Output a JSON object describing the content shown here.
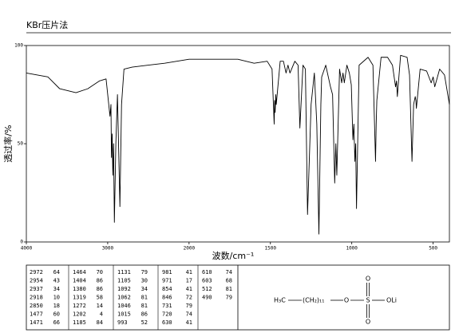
{
  "chart_data": {
    "type": "line",
    "title": "KBr压片法",
    "x_label": "波数/cm⁻¹",
    "y_label": "透过率/%",
    "x": [
      4000,
      3735,
      3590,
      3390,
      3245,
      3100,
      3020,
      2972,
      2960,
      2954,
      2945,
      2937,
      2928,
      2918,
      2900,
      2880,
      2850,
      2830,
      2800,
      2700,
      2500,
      2300,
      2000,
      1900,
      1700,
      1600,
      1520,
      1490,
      1477,
      1474,
      1471,
      1467,
      1464,
      1440,
      1420,
      1404,
      1392,
      1380,
      1350,
      1330,
      1319,
      1300,
      1285,
      1272,
      1250,
      1230,
      1215,
      1202,
      1190,
      1185,
      1160,
      1131,
      1118,
      1105,
      1098,
      1092,
      1075,
      1062,
      1054,
      1046,
      1030,
      1015,
      1003,
      993,
      987,
      981,
      976,
      971,
      955,
      900,
      870,
      854,
      850,
      846,
      820,
      780,
      750,
      731,
      725,
      720,
      700,
      660,
      645,
      630,
      620,
      610,
      606,
      603,
      580,
      540,
      512,
      500,
      490,
      460,
      430,
      400
    ],
    "series": [
      {
        "color": "#000000",
        "values": [
          86,
          84,
          78,
          76,
          78,
          82,
          83,
          64,
          70,
          43,
          55,
          34,
          50,
          10,
          50,
          75,
          18,
          70,
          88,
          89,
          90,
          91,
          93,
          93,
          93,
          91,
          92,
          88,
          60,
          72,
          66,
          75,
          70,
          92,
          92,
          86,
          90,
          86,
          92,
          90,
          58,
          90,
          88,
          14,
          70,
          86,
          60,
          4,
          70,
          84,
          90,
          79,
          75,
          30,
          50,
          34,
          88,
          81,
          86,
          81,
          90,
          86,
          80,
          52,
          60,
          41,
          50,
          17,
          90,
          94,
          90,
          41,
          60,
          72,
          94,
          94,
          90,
          79,
          82,
          74,
          95,
          94,
          85,
          41,
          70,
          74,
          72,
          68,
          88,
          87,
          81,
          84,
          79,
          88,
          85,
          70
        ]
      }
    ],
    "xlim": [
      4000,
      400
    ],
    "xticks": [
      4000,
      3000,
      2000,
      1500,
      1000,
      500
    ],
    "x_scale_break": {
      "at": 2000,
      "factor": 0.5
    },
    "ylim": [
      0,
      100
    ],
    "yticks": [
      0,
      50,
      100
    ]
  },
  "peak_table": {
    "columns": [
      [
        [
          2972,
          64
        ],
        [
          2954,
          43
        ],
        [
          2937,
          34
        ],
        [
          2918,
          10
        ],
        [
          2850,
          18
        ],
        [
          1477,
          60
        ],
        [
          1471,
          66
        ]
      ],
      [
        [
          1464,
          70
        ],
        [
          1404,
          86
        ],
        [
          1380,
          86
        ],
        [
          1319,
          58
        ],
        [
          1272,
          14
        ],
        [
          1202,
          4
        ],
        [
          1185,
          84
        ]
      ],
      [
        [
          1131,
          79
        ],
        [
          1105,
          30
        ],
        [
          1092,
          34
        ],
        [
          1062,
          81
        ],
        [
          1046,
          81
        ],
        [
          1015,
          86
        ],
        [
          993,
          52
        ]
      ],
      [
        [
          981,
          41
        ],
        [
          971,
          17
        ],
        [
          854,
          41
        ],
        [
          846,
          72
        ],
        [
          731,
          79
        ],
        [
          720,
          74
        ],
        [
          630,
          41
        ]
      ],
      [
        [
          610,
          74
        ],
        [
          603,
          68
        ],
        [
          512,
          81
        ],
        [
          490,
          79
        ]
      ]
    ]
  },
  "structure": {
    "labels": [
      "H₃C",
      "(CH₂)₁₁",
      "O",
      "S",
      "O",
      "O",
      "OLi"
    ]
  }
}
